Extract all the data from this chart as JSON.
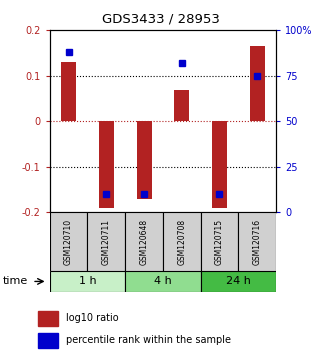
{
  "title": "GDS3433 / 28953",
  "samples": [
    "GSM120710",
    "GSM120711",
    "GSM120648",
    "GSM120708",
    "GSM120715",
    "GSM120716"
  ],
  "log10_ratio": [
    0.13,
    -0.19,
    -0.17,
    0.068,
    -0.19,
    0.165
  ],
  "percentile_rank": [
    88,
    10,
    10,
    82,
    10,
    75
  ],
  "ylim_left": [
    -0.2,
    0.2
  ],
  "ylim_right": [
    0,
    100
  ],
  "yticks_left": [
    -0.2,
    -0.1,
    0,
    0.1,
    0.2
  ],
  "yticks_right": [
    0,
    25,
    50,
    75,
    100
  ],
  "ytick_labels_left": [
    "-0.2",
    "-0.1",
    "0",
    "0.1",
    "0.2"
  ],
  "ytick_labels_right": [
    "0",
    "25",
    "50",
    "75",
    "100%"
  ],
  "bar_color": "#b22222",
  "dot_color": "#0000cc",
  "groups": [
    {
      "label": "1 h",
      "indices": [
        0,
        1
      ],
      "color": "#c8f0c8"
    },
    {
      "label": "4 h",
      "indices": [
        2,
        3
      ],
      "color": "#90dd90"
    },
    {
      "label": "24 h",
      "indices": [
        4,
        5
      ],
      "color": "#44bb44"
    }
  ],
  "xlabel_time": "time",
  "legend_bar_label": "log10 ratio",
  "legend_dot_label": "percentile rank within the sample",
  "bg_color": "#ffffff",
  "bar_width": 0.4,
  "dot_size": 5
}
